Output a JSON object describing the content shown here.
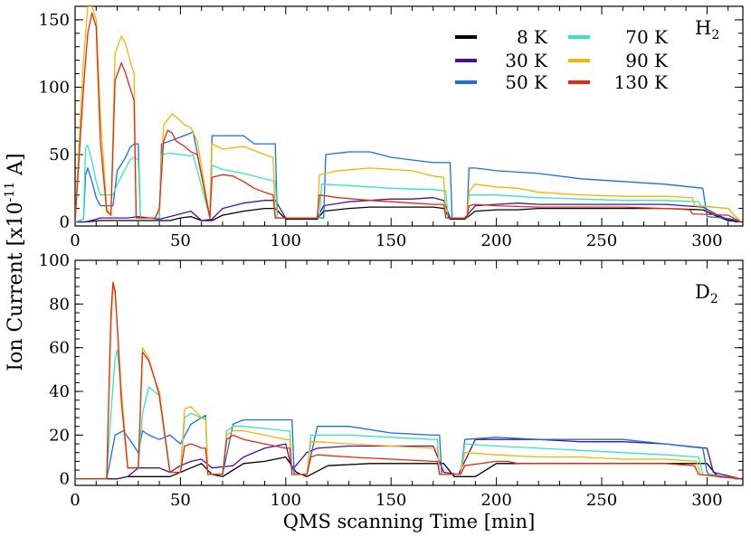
{
  "figure": {
    "ylabel": "Ion Current [x10",
    "ylabel_exp": "-11",
    "ylabel_unit": " A]",
    "xlabel": "QMS scanning Time [min]"
  },
  "chart_data": [
    {
      "type": "line",
      "title": "H",
      "title_sub": "2",
      "xlim": [
        0,
        317
      ],
      "ylim": [
        -3,
        160
      ],
      "xticks": [
        0,
        50,
        100,
        150,
        200,
        250,
        300
      ],
      "yticks": [
        0,
        50,
        100,
        150
      ],
      "legend_position": "top-right",
      "legend_columns": 2,
      "series": [
        {
          "name": "8 K",
          "color": "#000000",
          "x": [
            0,
            3,
            5,
            12,
            20,
            25,
            30,
            40,
            45,
            50,
            55,
            60,
            65,
            70,
            80,
            90,
            95,
            100,
            110,
            115,
            118,
            130,
            140,
            150,
            160,
            170,
            175,
            178,
            185,
            190,
            200,
            210,
            220,
            240,
            260,
            280,
            298,
            305,
            310,
            316
          ],
          "y": [
            0,
            0,
            0,
            1,
            1,
            1,
            1,
            1,
            1,
            3,
            4,
            1,
            1,
            5,
            8,
            10,
            10,
            2,
            2,
            2,
            8,
            10,
            11,
            11,
            11,
            11,
            10,
            2,
            2,
            8,
            9,
            9,
            10,
            10,
            10,
            10,
            9,
            4,
            1,
            0
          ]
        },
        {
          "name": "30 K",
          "color": "#4b0fa0",
          "x": [
            0,
            3,
            5,
            10,
            12,
            20,
            25,
            30,
            40,
            45,
            50,
            55,
            60,
            65,
            70,
            80,
            90,
            95,
            100,
            110,
            115,
            118,
            130,
            140,
            150,
            160,
            170,
            175,
            178,
            185,
            190,
            200,
            210,
            220,
            240,
            260,
            280,
            298,
            305,
            310,
            316
          ],
          "y": [
            0,
            0,
            0,
            2,
            3,
            3,
            3,
            4,
            2,
            4,
            6,
            8,
            1,
            2,
            10,
            14,
            16,
            16,
            3,
            3,
            3,
            12,
            15,
            16,
            17,
            17,
            18,
            16,
            3,
            3,
            12,
            13,
            14,
            13,
            13,
            13,
            13,
            11,
            5,
            2,
            0
          ]
        },
        {
          "name": "50 K",
          "color": "#1a6ee6",
          "x": [
            0,
            4,
            5,
            6,
            8,
            10,
            12,
            18,
            20,
            24,
            26,
            28,
            30,
            31,
            40,
            41,
            45,
            50,
            55,
            56,
            64,
            65,
            70,
            80,
            85,
            95,
            96,
            110,
            118,
            119,
            130,
            140,
            150,
            160,
            170,
            178,
            179,
            186,
            187,
            190,
            200,
            220,
            240,
            260,
            280,
            298,
            300,
            308,
            312,
            316
          ],
          "y": [
            0,
            2,
            35,
            40,
            30,
            18,
            12,
            12,
            38,
            48,
            55,
            58,
            58,
            3,
            3,
            58,
            60,
            63,
            66,
            67,
            3,
            64,
            64,
            64,
            58,
            58,
            3,
            3,
            3,
            50,
            52,
            52,
            48,
            46,
            44,
            44,
            3,
            3,
            40,
            40,
            38,
            36,
            32,
            30,
            28,
            25,
            4,
            3,
            2,
            0
          ]
        },
        {
          "name": "70 K",
          "color": "#33e6c0",
          "x": [
            0,
            4,
            5,
            6,
            8,
            10,
            12,
            18,
            20,
            24,
            26,
            28,
            30,
            31,
            40,
            41,
            45,
            50,
            55,
            56,
            64,
            65,
            70,
            80,
            90,
            95,
            96,
            110,
            116,
            117,
            130,
            150,
            170,
            176,
            177,
            186,
            187,
            200,
            220,
            240,
            260,
            280,
            296,
            297,
            310,
            316
          ],
          "y": [
            0,
            2,
            55,
            57,
            45,
            30,
            20,
            20,
            28,
            40,
            46,
            48,
            46,
            3,
            3,
            50,
            51,
            50,
            49,
            50,
            3,
            42,
            39,
            36,
            32,
            30,
            3,
            3,
            3,
            28,
            27,
            25,
            24,
            23,
            3,
            3,
            20,
            20,
            18,
            17,
            16,
            16,
            15,
            12,
            10,
            0
          ]
        },
        {
          "name": "90 K",
          "color": "#f5b400",
          "x": [
            0,
            4,
            6,
            8,
            10,
            12,
            15,
            17,
            19,
            22,
            24,
            26,
            28,
            29,
            35,
            38,
            40,
            42,
            44,
            46,
            48,
            52,
            55,
            58,
            64,
            65,
            70,
            80,
            90,
            94,
            95,
            110,
            115,
            116,
            125,
            140,
            150,
            160,
            170,
            175,
            176,
            186,
            187,
            190,
            200,
            210,
            220,
            240,
            260,
            280,
            293,
            294,
            310,
            316
          ],
          "y": [
            0,
            120,
            160,
            160,
            150,
            80,
            10,
            5,
            125,
            138,
            132,
            120,
            110,
            3,
            3,
            3,
            8,
            72,
            76,
            80,
            78,
            72,
            70,
            60,
            3,
            58,
            54,
            56,
            50,
            48,
            3,
            3,
            3,
            35,
            38,
            40,
            39,
            38,
            34,
            33,
            3,
            3,
            23,
            28,
            26,
            25,
            22,
            20,
            19,
            19,
            18,
            12,
            10,
            0
          ]
        },
        {
          "name": "130 K",
          "color": "#e62a10",
          "x": [
            0,
            4,
            6,
            8,
            10,
            12,
            15,
            17,
            19,
            22,
            24,
            26,
            28,
            29,
            35,
            38,
            40,
            42,
            44,
            46,
            48,
            50,
            52,
            55,
            58,
            64,
            65,
            70,
            75,
            80,
            85,
            90,
            94,
            95,
            110,
            115,
            116,
            125,
            140,
            150,
            160,
            170,
            175,
            176,
            186,
            187,
            190,
            200,
            220,
            240,
            260,
            280,
            292,
            293,
            310,
            316
          ],
          "y": [
            0,
            100,
            140,
            155,
            145,
            60,
            8,
            5,
            105,
            118,
            110,
            100,
            90,
            3,
            3,
            3,
            10,
            60,
            68,
            66,
            60,
            58,
            56,
            52,
            50,
            3,
            33,
            35,
            34,
            30,
            25,
            22,
            20,
            3,
            3,
            3,
            20,
            18,
            16,
            15,
            14,
            13,
            13,
            3,
            3,
            12,
            13,
            12,
            11,
            11,
            11,
            10,
            9,
            6,
            5,
            0
          ]
        }
      ]
    },
    {
      "type": "line",
      "title": "D",
      "title_sub": "2",
      "xlim": [
        0,
        317
      ],
      "ylim": [
        -3,
        100
      ],
      "xticks": [
        0,
        50,
        100,
        150,
        200,
        250,
        300
      ],
      "yticks": [
        0,
        20,
        40,
        60,
        80,
        100
      ],
      "series": [
        {
          "name": "8 K",
          "color": "#000000",
          "x": [
            0,
            20,
            25,
            35,
            45,
            50,
            55,
            60,
            65,
            70,
            80,
            90,
            100,
            105,
            110,
            120,
            140,
            160,
            175,
            180,
            190,
            200,
            220,
            240,
            260,
            280,
            300,
            305,
            316
          ],
          "y": [
            0,
            0,
            1,
            1,
            1,
            3,
            5,
            7,
            2,
            1,
            7,
            8,
            10,
            3,
            1,
            6,
            7,
            7,
            7,
            1,
            1,
            7,
            7,
            7,
            7,
            7,
            7,
            1,
            0
          ]
        },
        {
          "name": "30 K",
          "color": "#4b0fa0",
          "x": [
            0,
            20,
            25,
            30,
            40,
            45,
            50,
            55,
            60,
            65,
            75,
            80,
            90,
            100,
            103,
            110,
            115,
            130,
            150,
            170,
            175,
            182,
            190,
            200,
            220,
            240,
            260,
            280,
            300,
            303,
            316
          ],
          "y": [
            0,
            0,
            1,
            5,
            5,
            3,
            6,
            8,
            9,
            5,
            6,
            10,
            14,
            16,
            4,
            12,
            14,
            15,
            15,
            15,
            3,
            2,
            18,
            18,
            18,
            17,
            17,
            16,
            14,
            3,
            0
          ]
        },
        {
          "name": "50 K",
          "color": "#1a6ee6",
          "x": [
            0,
            15,
            17,
            19,
            23,
            28,
            30,
            32,
            35,
            40,
            45,
            50,
            55,
            60,
            62,
            63,
            70,
            75,
            80,
            90,
            100,
            103,
            104,
            110,
            115,
            130,
            150,
            170,
            173,
            174,
            183,
            185,
            200,
            220,
            240,
            260,
            280,
            298,
            300,
            301,
            316
          ],
          "y": [
            0,
            0,
            10,
            20,
            22,
            15,
            12,
            22,
            20,
            18,
            20,
            16,
            25,
            28,
            29,
            2,
            2,
            25,
            27,
            27,
            27,
            27,
            2,
            2,
            24,
            24,
            21,
            20,
            20,
            2,
            2,
            18,
            19,
            18,
            18,
            18,
            16,
            14,
            3,
            2,
            0
          ]
        },
        {
          "name": "70 K",
          "color": "#33e6c0",
          "x": [
            0,
            15,
            17,
            19,
            20,
            22,
            25,
            30,
            32,
            35,
            40,
            45,
            50,
            52,
            55,
            60,
            62,
            63,
            70,
            72,
            75,
            80,
            90,
            100,
            102,
            103,
            110,
            112,
            115,
            130,
            150,
            170,
            172,
            173,
            183,
            185,
            200,
            220,
            240,
            260,
            280,
            296,
            298,
            316
          ],
          "y": [
            0,
            0,
            30,
            55,
            59,
            40,
            5,
            5,
            30,
            42,
            38,
            3,
            3,
            28,
            30,
            28,
            28,
            2,
            2,
            22,
            24,
            24,
            23,
            22,
            22,
            2,
            2,
            20,
            20,
            20,
            19,
            18,
            18,
            2,
            2,
            16,
            15,
            14,
            13,
            12,
            11,
            10,
            2,
            0
          ]
        },
        {
          "name": "90 K",
          "color": "#f5b400",
          "x": [
            0,
            15,
            17,
            18,
            19,
            20,
            22,
            25,
            28,
            30,
            32,
            35,
            38,
            40,
            45,
            48,
            50,
            52,
            55,
            58,
            60,
            62,
            63,
            70,
            72,
            75,
            80,
            90,
            100,
            102,
            103,
            110,
            112,
            115,
            130,
            150,
            170,
            172,
            173,
            183,
            185,
            200,
            220,
            240,
            260,
            280,
            295,
            297,
            316
          ],
          "y": [
            0,
            0,
            70,
            88,
            85,
            70,
            40,
            5,
            5,
            5,
            60,
            55,
            45,
            40,
            3,
            3,
            3,
            32,
            33,
            30,
            28,
            27,
            2,
            2,
            20,
            22,
            22,
            20,
            18,
            18,
            2,
            2,
            17,
            17,
            16,
            15,
            14,
            14,
            2,
            2,
            12,
            11,
            10,
            10,
            9,
            9,
            8,
            2,
            0
          ]
        },
        {
          "name": "130 K",
          "color": "#e62a10",
          "x": [
            0,
            15,
            17,
            18,
            19,
            20,
            22,
            25,
            28,
            30,
            32,
            35,
            38,
            40,
            45,
            48,
            50,
            52,
            55,
            58,
            60,
            62,
            63,
            70,
            72,
            75,
            80,
            90,
            100,
            102,
            103,
            110,
            112,
            115,
            130,
            150,
            170,
            172,
            173,
            183,
            185,
            200,
            205,
            210,
            220,
            240,
            260,
            280,
            294,
            296,
            316
          ],
          "y": [
            0,
            0,
            75,
            90,
            86,
            70,
            35,
            5,
            5,
            5,
            58,
            54,
            45,
            38,
            3,
            3,
            3,
            15,
            16,
            15,
            14,
            14,
            2,
            2,
            18,
            20,
            18,
            16,
            14,
            14,
            2,
            2,
            10,
            11,
            10,
            9,
            8,
            8,
            2,
            2,
            6,
            8,
            8,
            7,
            7,
            7,
            7,
            7,
            6,
            2,
            0
          ]
        }
      ]
    }
  ]
}
